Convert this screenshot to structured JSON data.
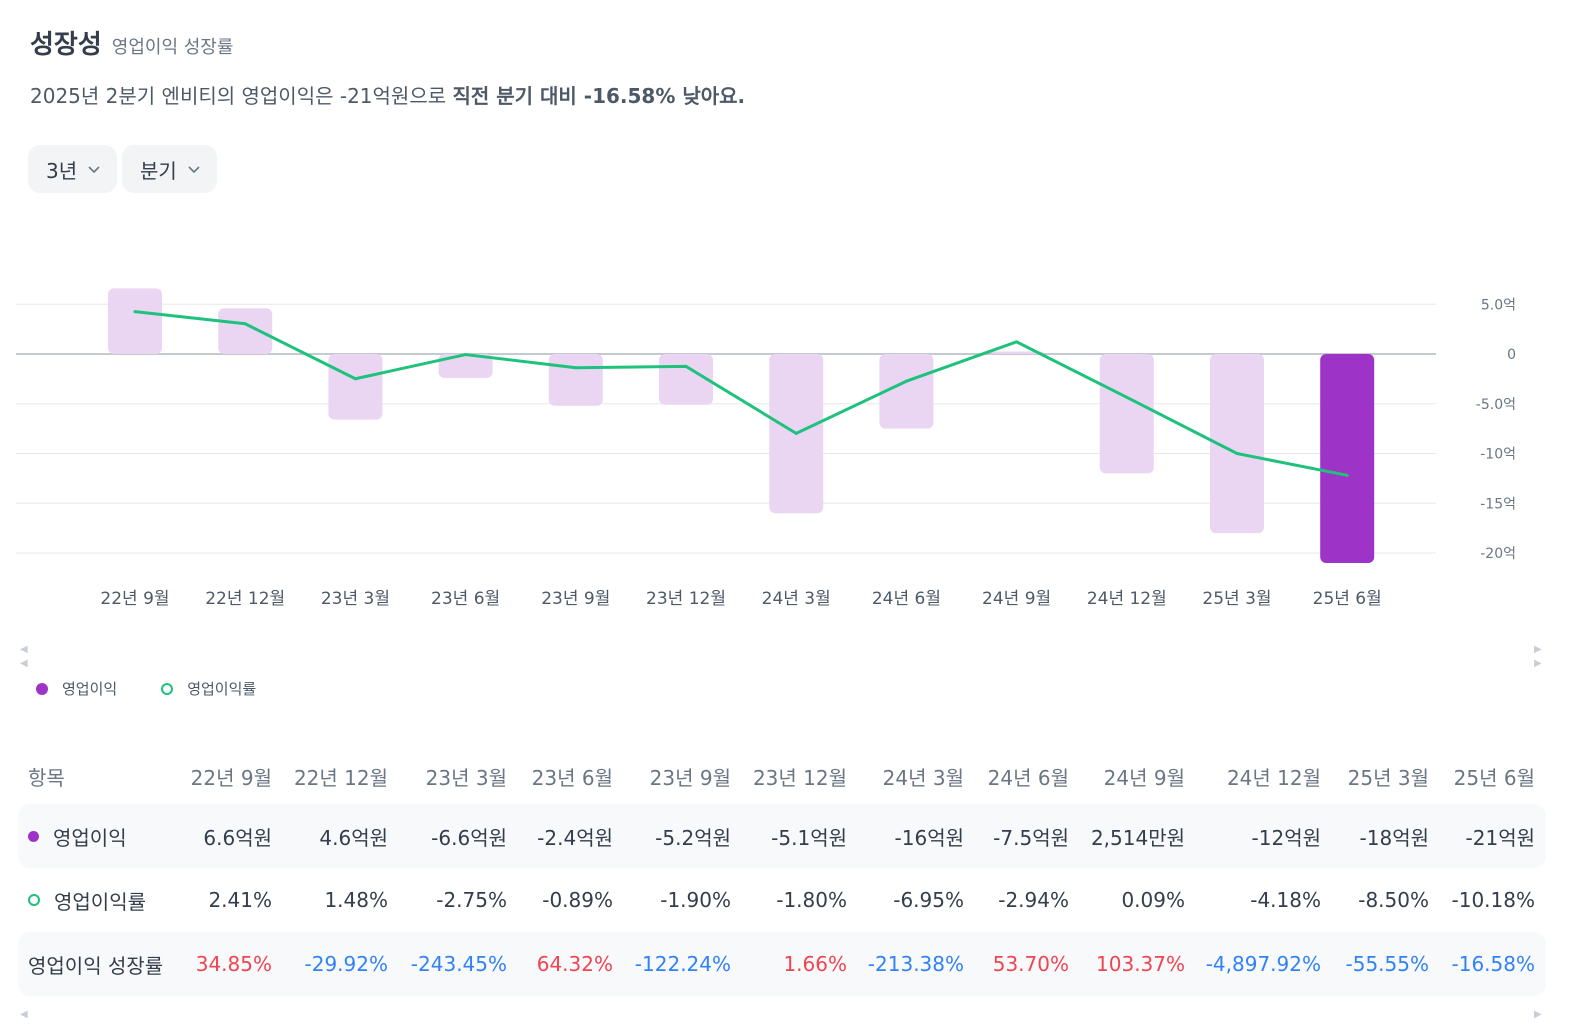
{
  "header": {
    "title": "성장성",
    "subtitle": "영업이익 성장률",
    "summary_plain": "2025년 2분기 엔비티의 영업이익은 -21억원으로",
    "summary_bold": "직전 분기 대비 -16.58% 낮아요."
  },
  "controls": {
    "period_label": "3년",
    "interval_label": "분기"
  },
  "legend": {
    "bar_label": "영업이익",
    "line_label": "영업이익률"
  },
  "colors": {
    "bar_light": "#ead5f3",
    "bar_highlight": "#9e34c7",
    "line": "#1ec27c",
    "positive": "#f04452",
    "negative": "#3182f6"
  },
  "chart_data": {
    "type": "bar",
    "categories": [
      "22년 9월",
      "22년 12월",
      "23년 3월",
      "23년 6월",
      "23년 9월",
      "23년 12월",
      "24년 3월",
      "24년 6월",
      "24년 9월",
      "24년 12월",
      "25년 3월",
      "25년 6월"
    ],
    "series": [
      {
        "name": "영업이익",
        "unit": "억원",
        "values": [
          6.6,
          4.6,
          -6.6,
          -2.4,
          -5.2,
          -5.1,
          -16,
          -7.5,
          0.2514,
          -12,
          -18,
          -21
        ]
      },
      {
        "name": "영업이익률",
        "unit": "%",
        "values": [
          2.41,
          1.48,
          -2.75,
          -0.89,
          -1.9,
          -1.8,
          -6.95,
          -2.94,
          0.09,
          -4.18,
          -8.5,
          -10.18
        ]
      }
    ],
    "y_ticks": [
      5,
      0,
      -5,
      -10,
      -15,
      -20
    ],
    "y_tick_labels": [
      "5.0억",
      "0",
      "-5.0억",
      "-10억",
      "-15억",
      "-20억"
    ],
    "highlight_index": 11
  },
  "table": {
    "header_label": "항목",
    "columns": [
      "22년 9월",
      "22년 12월",
      "23년 3월",
      "23년 6월",
      "23년 9월",
      "23년 12월",
      "24년 3월",
      "24년 6월",
      "24년 9월",
      "24년 12월",
      "25년 3월",
      "25년 6월"
    ],
    "rows": [
      {
        "label": "영업이익",
        "values": [
          "6.6억원",
          "4.6억원",
          "-6.6억원",
          "-2.4억원",
          "-5.2억원",
          "-5.1억원",
          "-16억원",
          "-7.5억원",
          "2,514만원",
          "-12억원",
          "-18억원",
          "-21억원"
        ]
      },
      {
        "label": "영업이익률",
        "values": [
          "2.41%",
          "1.48%",
          "-2.75%",
          "-0.89%",
          "-1.90%",
          "-1.80%",
          "-6.95%",
          "-2.94%",
          "0.09%",
          "-4.18%",
          "-8.50%",
          "-10.18%"
        ]
      },
      {
        "label": "영업이익 성장률",
        "values": [
          "34.85%",
          "-29.92%",
          "-243.45%",
          "64.32%",
          "-122.24%",
          "1.66%",
          "-213.38%",
          "53.70%",
          "103.37%",
          "-4,897.92%",
          "-55.55%",
          "-16.58%"
        ]
      }
    ]
  }
}
